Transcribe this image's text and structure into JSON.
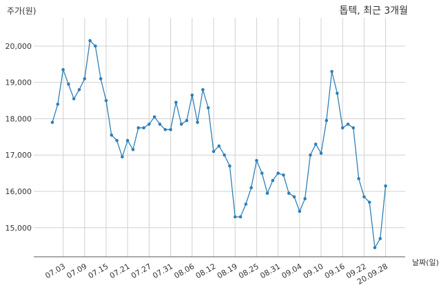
{
  "chart_data": {
    "type": "line",
    "title": "톱텍, 최근 3개월",
    "ylabel": "주가(원)",
    "xlabel": "날짜(일)",
    "ylim": [
      14200,
      20700
    ],
    "yticks": [
      15000,
      16000,
      17000,
      18000,
      19000,
      20000
    ],
    "ytick_labels": [
      "15,000",
      "16,000",
      "17,000",
      "18,000",
      "19,000",
      "20,000"
    ],
    "xtick_labels": [
      "07.03",
      "07.09",
      "07.15",
      "07.21",
      "07.27",
      "07.31",
      "08.06",
      "08.12",
      "08.19",
      "08.25",
      "08.31",
      "09.04",
      "09.10",
      "09.16",
      "09.22",
      "20.09.28"
    ],
    "xtick_index": [
      2,
      6,
      10,
      14,
      18,
      22,
      26,
      30,
      34,
      38,
      42,
      46,
      50,
      54,
      58,
      62
    ],
    "grid": true,
    "series": [
      {
        "color": "#2e7fb8",
        "values": [
          17900,
          18400,
          19350,
          18950,
          18550,
          18800,
          19100,
          20150,
          20000,
          19100,
          18500,
          17550,
          17400,
          16950,
          17400,
          17150,
          17750,
          17750,
          17850,
          18050,
          17850,
          17700,
          17700,
          18450,
          17850,
          17950,
          18650,
          17900,
          18800,
          18300,
          17100,
          17250,
          17000,
          16700,
          15300,
          15300,
          15650,
          16100,
          16850,
          16500,
          15950,
          16300,
          16500,
          16450,
          15950,
          15850,
          15450,
          15800,
          17000,
          17300,
          17050,
          17950,
          19300,
          18700,
          17750,
          17850,
          17750,
          16350,
          15850,
          15700,
          14450,
          14700,
          16150
        ]
      }
    ]
  }
}
